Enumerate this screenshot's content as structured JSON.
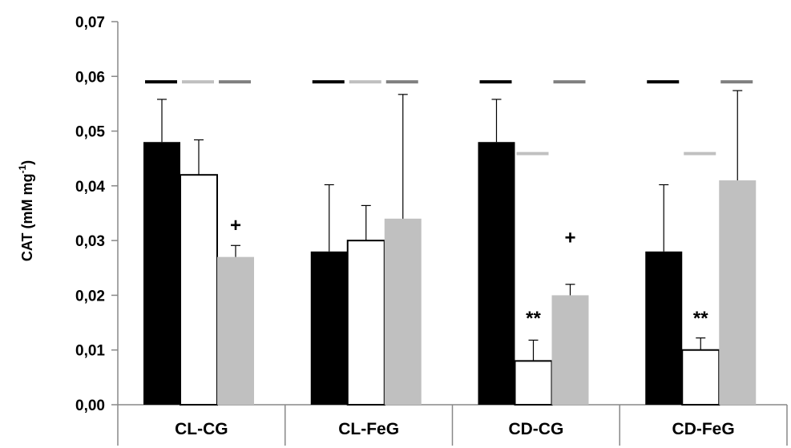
{
  "chart_data": {
    "type": "bar",
    "ylabel": "CAT (mM mg",
    "ylabel_superscript": "-1",
    "ylabel_close": ")",
    "ylim": [
      0,
      0.07
    ],
    "yticks": [
      0,
      0.01,
      0.02,
      0.03,
      0.04,
      0.05,
      0.06,
      0.07
    ],
    "ytick_labels": [
      "0,00",
      "0,01",
      "0,02",
      "0,03",
      "0,04",
      "0,05",
      "0,06",
      "0,07"
    ],
    "grid": false,
    "legend": "none",
    "categories": [
      "CL-CG",
      "CL-FeG",
      "CD-CG",
      "CD-FeG"
    ],
    "series": [
      {
        "color": "#000000",
        "values": [
          0.048,
          0.028,
          0.048,
          0.028
        ],
        "errors": [
          0.0078,
          0.0122,
          0.0078,
          0.0122
        ]
      },
      {
        "color": "#ffffff",
        "stroke": "#000000",
        "values": [
          0.042,
          0.03,
          0.008,
          0.01
        ],
        "errors": [
          0.0064,
          0.0064,
          0.0038,
          0.0022
        ]
      },
      {
        "color": "#c0c0c0",
        "values": [
          0.027,
          0.034,
          0.02,
          0.041
        ],
        "errors": [
          0.0021,
          0.0227,
          0.002,
          0.0164
        ]
      }
    ],
    "reference_lines": [
      {
        "series": 0,
        "y": 0.059,
        "color": "#000000",
        "present": [
          true,
          true,
          true,
          true
        ]
      },
      {
        "series": 1,
        "y": 0.059,
        "color": "#c0c0c0",
        "present": [
          true,
          true,
          false,
          false
        ]
      },
      {
        "series": 1,
        "y": 0.0459,
        "color": "#c0c0c0",
        "present": [
          false,
          false,
          true,
          true
        ]
      },
      {
        "series": 2,
        "y": 0.059,
        "color": "#808080",
        "present": [
          true,
          true,
          true,
          true
        ]
      }
    ],
    "annotations": [
      {
        "text": "+",
        "category": 0,
        "series": 2,
        "y": 0.0328
      },
      {
        "text": "+",
        "category": 2,
        "series": 2,
        "y": 0.0305
      },
      {
        "text": "**",
        "category": 2,
        "series": 1,
        "y": 0.0158
      },
      {
        "text": "**",
        "category": 3,
        "series": 1,
        "y": 0.0158
      }
    ]
  }
}
